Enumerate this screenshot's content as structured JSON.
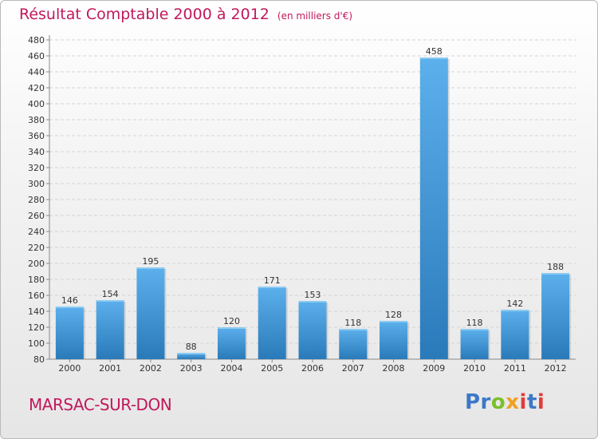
{
  "chart_data": {
    "type": "bar",
    "title": "Résultat Comptable 2000 à 2012",
    "subtitle": "(en milliers d'€)",
    "categories": [
      "2000",
      "2001",
      "2002",
      "2003",
      "2004",
      "2005",
      "2006",
      "2007",
      "2008",
      "2009",
      "2010",
      "2011",
      "2012"
    ],
    "values": [
      146,
      154,
      195,
      88,
      120,
      171,
      153,
      118,
      128,
      458,
      118,
      142,
      188
    ],
    "ylim": [
      80,
      480
    ],
    "ytick_step": 20,
    "xlabel": "",
    "ylabel": "",
    "grid": true,
    "legend": "none"
  },
  "footer": {
    "commune": "MARSAC-SUR-DON",
    "logo": {
      "p1": "Pr",
      "o": "o",
      "x": "x",
      "i": "i",
      "t": "t",
      "i2": "i"
    }
  },
  "colors": {
    "bar_light": "#5aaee8",
    "bar_dark": "#2878b8",
    "title": "#c2185b",
    "axis": "#888888"
  }
}
